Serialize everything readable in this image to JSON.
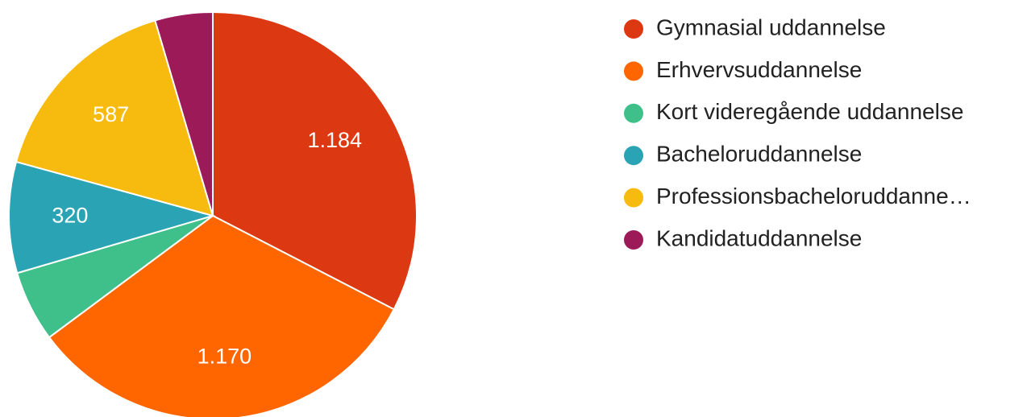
{
  "chart_data": {
    "type": "pie",
    "categories": [
      "Gymnasial uddannelse",
      "Erhvervsuddannelse",
      "Kort videregående uddannelse",
      "Bacheloruddannelse",
      "Professionsbacheloruddanne…",
      "Kandidatuddannelse"
    ],
    "values": [
      1184,
      1170,
      205,
      320,
      587,
      166
    ],
    "value_labels": [
      "1.184",
      "1.170",
      null,
      "320",
      "587",
      null
    ],
    "colors": [
      "#dc3912",
      "#ff6600",
      "#3fbf8a",
      "#2aa4b4",
      "#f6bb0e",
      "#9c1a57"
    ],
    "legend": "right"
  }
}
